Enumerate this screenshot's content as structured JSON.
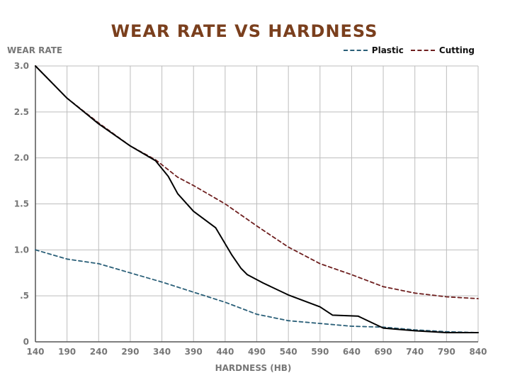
{
  "chart_data": {
    "type": "line",
    "title": "WEAR RATE VS HARDNESS",
    "ylabel": "WEAR RATE",
    "xlabel": "HARDNESS (HB)",
    "xlim": [
      140,
      840
    ],
    "ylim": [
      0,
      3.0
    ],
    "x_ticks": [
      140,
      190,
      240,
      290,
      340,
      390,
      440,
      490,
      540,
      590,
      640,
      690,
      740,
      790,
      840
    ],
    "y_ticks": [
      {
        "value": 0,
        "label": "0"
      },
      {
        "value": 0.5,
        "label": ".5"
      },
      {
        "value": 1.0,
        "label": "1.0"
      },
      {
        "value": 1.5,
        "label": "1.5"
      },
      {
        "value": 2.0,
        "label": "2.0"
      },
      {
        "value": 2.5,
        "label": "2.5"
      },
      {
        "value": 3.0,
        "label": "3.0"
      }
    ],
    "grid": true,
    "legend_position": "top-right",
    "series": [
      {
        "name": "Plastic",
        "color": "#2a5f78",
        "dash": "dashed",
        "points": [
          [
            140,
            1.0
          ],
          [
            190,
            0.9
          ],
          [
            240,
            0.85
          ],
          [
            290,
            0.75
          ],
          [
            340,
            0.65
          ],
          [
            390,
            0.54
          ],
          [
            440,
            0.43
          ],
          [
            490,
            0.3
          ],
          [
            540,
            0.23
          ],
          [
            590,
            0.2
          ],
          [
            640,
            0.17
          ],
          [
            690,
            0.16
          ],
          [
            740,
            0.13
          ],
          [
            790,
            0.11
          ],
          [
            840,
            0.1
          ]
        ]
      },
      {
        "name": "Cutting",
        "color": "#6e1f1f",
        "dash": "dashed",
        "points": [
          [
            140,
            3.0
          ],
          [
            190,
            2.65
          ],
          [
            240,
            2.38
          ],
          [
            290,
            2.13
          ],
          [
            330,
            1.98
          ],
          [
            365,
            1.79
          ],
          [
            390,
            1.7
          ],
          [
            440,
            1.5
          ],
          [
            490,
            1.26
          ],
          [
            540,
            1.03
          ],
          [
            590,
            0.85
          ],
          [
            640,
            0.73
          ],
          [
            690,
            0.6
          ],
          [
            740,
            0.53
          ],
          [
            790,
            0.49
          ],
          [
            840,
            0.47
          ]
        ]
      },
      {
        "name": "",
        "color": "#000000",
        "dash": "solid",
        "points": [
          [
            140,
            3.0
          ],
          [
            190,
            2.65
          ],
          [
            240,
            2.37
          ],
          [
            290,
            2.13
          ],
          [
            330,
            1.97
          ],
          [
            350,
            1.8
          ],
          [
            365,
            1.61
          ],
          [
            390,
            1.42
          ],
          [
            425,
            1.24
          ],
          [
            450,
            0.95
          ],
          [
            465,
            0.8
          ],
          [
            475,
            0.73
          ],
          [
            500,
            0.64
          ],
          [
            540,
            0.51
          ],
          [
            590,
            0.38
          ],
          [
            610,
            0.29
          ],
          [
            650,
            0.28
          ],
          [
            690,
            0.15
          ],
          [
            740,
            0.12
          ],
          [
            790,
            0.1
          ],
          [
            840,
            0.1
          ]
        ]
      }
    ]
  }
}
